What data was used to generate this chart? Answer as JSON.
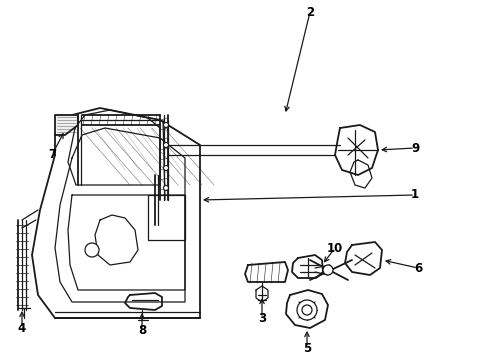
{
  "background_color": "#ffffff",
  "line_color": "#1a1a1a",
  "label_color": "#000000",
  "fig_width": 4.9,
  "fig_height": 3.6,
  "dpi": 100,
  "label_fontsize": 8.5
}
